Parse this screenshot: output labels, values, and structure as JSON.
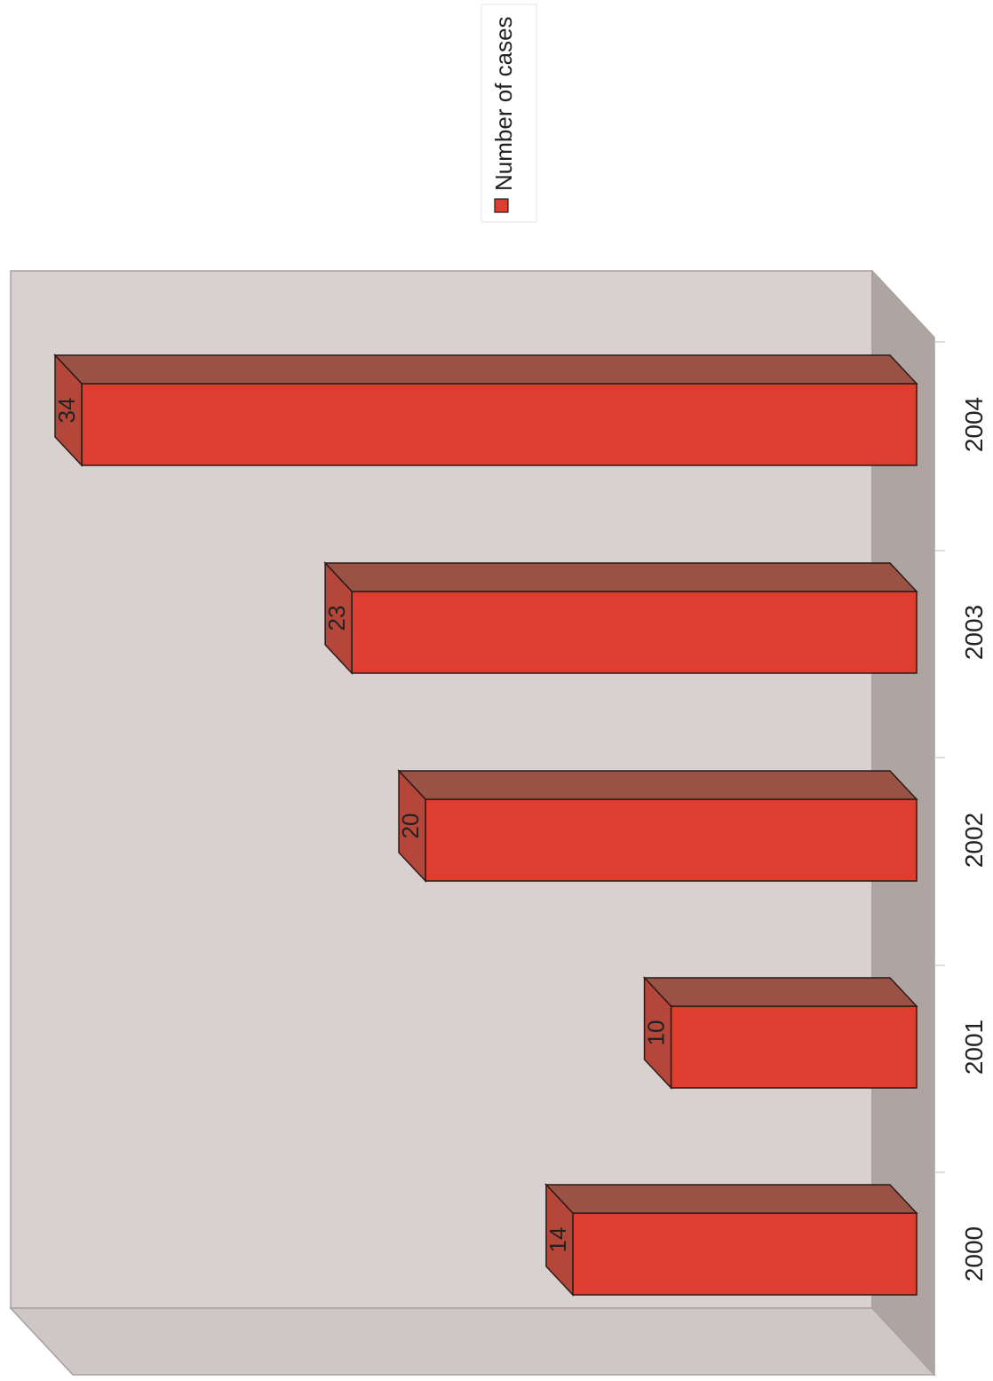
{
  "chart_data": {
    "type": "bar",
    "orientation": "3d-columns-rotated-90",
    "categories": [
      "2000",
      "2001",
      "2002",
      "2003",
      "2004"
    ],
    "series": [
      {
        "name": "Number of cases",
        "values": [
          14,
          10,
          20,
          23,
          34
        ]
      }
    ],
    "data_labels": [
      "14",
      "10",
      "20",
      "23",
      "34"
    ],
    "title": "",
    "xlabel": "",
    "ylabel": "",
    "ylim": [
      0,
      34
    ],
    "grid": false,
    "legend_position": "right"
  },
  "colors": {
    "bar_front": "#de3e2f",
    "bar_top": "#9a5244",
    "bar_side": "#b5463a",
    "plot_back": "#d8d1cf",
    "plot_floor": "#aea4a2",
    "plot_wall_edge": "#cfc7c5",
    "text": "#222222"
  }
}
